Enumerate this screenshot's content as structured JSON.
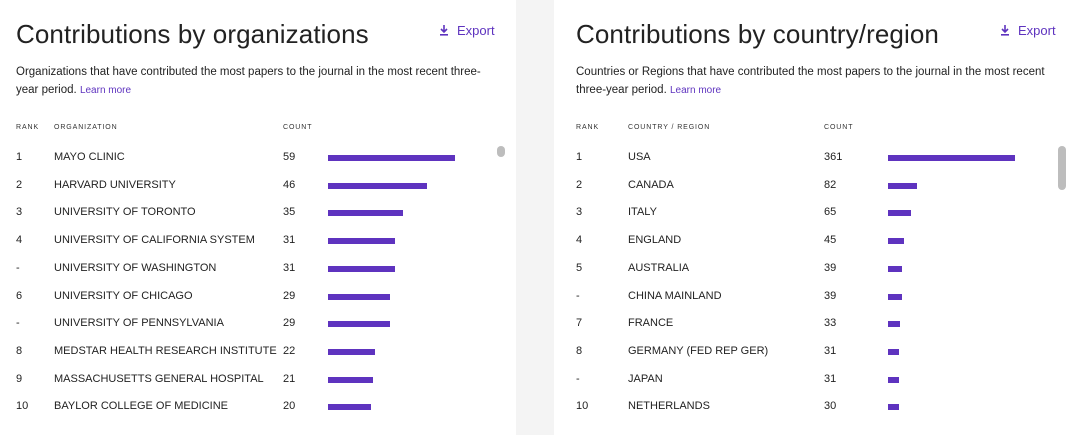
{
  "organizations": {
    "title": "Contributions by organizations",
    "export_label": "Export",
    "description": "Organizations that have contributed the most papers to the journal in the most recent three-year period.",
    "learn_more": "Learn more",
    "headers": {
      "rank": "RANK",
      "name": "ORGANIZATION",
      "count": "COUNT"
    },
    "max_count": 59,
    "rows": [
      {
        "rank": "1",
        "name": "MAYO CLINIC",
        "count": 59
      },
      {
        "rank": "2",
        "name": "HARVARD UNIVERSITY",
        "count": 46
      },
      {
        "rank": "3",
        "name": "UNIVERSITY OF TORONTO",
        "count": 35
      },
      {
        "rank": "4",
        "name": "UNIVERSITY OF CALIFORNIA SYSTEM",
        "count": 31
      },
      {
        "rank": "-",
        "name": "UNIVERSITY OF WASHINGTON",
        "count": 31
      },
      {
        "rank": "6",
        "name": "UNIVERSITY OF CHICAGO",
        "count": 29
      },
      {
        "rank": "-",
        "name": "UNIVERSITY OF PENNSYLVANIA",
        "count": 29
      },
      {
        "rank": "8",
        "name": "MEDSTAR HEALTH RESEARCH INSTITUTE",
        "count": 22
      },
      {
        "rank": "9",
        "name": "MASSACHUSETTS GENERAL HOSPITAL",
        "count": 21
      },
      {
        "rank": "10",
        "name": "BAYLOR COLLEGE OF MEDICINE",
        "count": 20
      }
    ]
  },
  "countries": {
    "title": "Contributions by country/region",
    "export_label": "Export",
    "description": "Countries or Regions that have contributed the most papers to the journal in the most recent three-year period.",
    "learn_more": "Learn more",
    "headers": {
      "rank": "RANK",
      "name": "COUNTRY / REGION",
      "count": "COUNT"
    },
    "max_count": 361,
    "rows": [
      {
        "rank": "1",
        "name": "USA",
        "count": 361
      },
      {
        "rank": "2",
        "name": "CANADA",
        "count": 82
      },
      {
        "rank": "3",
        "name": "ITALY",
        "count": 65
      },
      {
        "rank": "4",
        "name": "ENGLAND",
        "count": 45
      },
      {
        "rank": "5",
        "name": "AUSTRALIA",
        "count": 39
      },
      {
        "rank": "-",
        "name": "CHINA MAINLAND",
        "count": 39
      },
      {
        "rank": "7",
        "name": "FRANCE",
        "count": 33
      },
      {
        "rank": "8",
        "name": "GERMANY (FED REP GER)",
        "count": 31
      },
      {
        "rank": "-",
        "name": "JAPAN",
        "count": 31
      },
      {
        "rank": "10",
        "name": "NETHERLANDS",
        "count": 30
      }
    ]
  },
  "icons": {
    "export": "download-icon"
  },
  "colors": {
    "accent": "#5e33bf",
    "text": "#222222",
    "scrollbar": "#bdbdbd"
  }
}
